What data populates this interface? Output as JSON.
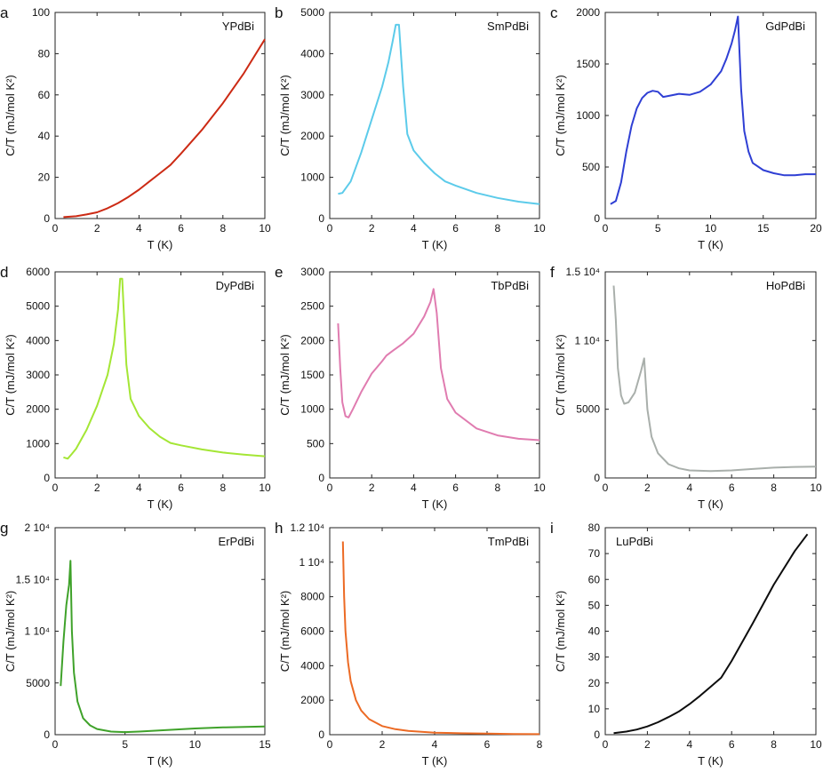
{
  "chart_data": [
    {
      "type": "line",
      "panel": "a",
      "name": "YPdBi",
      "color": "#cc2a14",
      "xlabel": "T (K)",
      "ylabel": "C/T (mJ/mol K²)",
      "xlim": [
        0,
        10
      ],
      "ylim": [
        0,
        100
      ],
      "xticks": [
        {
          "v": 0,
          "label": "0"
        },
        {
          "v": 2,
          "label": "2"
        },
        {
          "v": 4,
          "label": "4"
        },
        {
          "v": 6,
          "label": "6"
        },
        {
          "v": 8,
          "label": "8"
        },
        {
          "v": 10,
          "label": "10"
        }
      ],
      "yticks": [
        {
          "v": 0,
          "label": "0"
        },
        {
          "v": 20,
          "label": "20"
        },
        {
          "v": 40,
          "label": "40"
        },
        {
          "v": 60,
          "label": "60"
        },
        {
          "v": 80,
          "label": "80"
        },
        {
          "v": 100,
          "label": "100"
        }
      ],
      "x": [
        0.4,
        1,
        1.5,
        2,
        2.5,
        3,
        3.5,
        4,
        4.5,
        5,
        5.5,
        6,
        7,
        8,
        9,
        10
      ],
      "y": [
        0.7,
        1.1,
        2,
        3,
        5,
        7.5,
        10.5,
        14,
        18,
        22,
        26,
        31.5,
        43,
        56,
        70.5,
        87
      ]
    },
    {
      "type": "line",
      "panel": "b",
      "name": "SmPdBi",
      "color": "#5ccbea",
      "xlabel": "T (K)",
      "ylabel": "C/T (mJ/mol K²)",
      "xlim": [
        0,
        10
      ],
      "ylim": [
        0,
        5000
      ],
      "xticks": [
        {
          "v": 0,
          "label": "0"
        },
        {
          "v": 2,
          "label": "2"
        },
        {
          "v": 4,
          "label": "4"
        },
        {
          "v": 6,
          "label": "6"
        },
        {
          "v": 8,
          "label": "8"
        },
        {
          "v": 10,
          "label": "10"
        }
      ],
      "yticks": [
        {
          "v": 0,
          "label": "0"
        },
        {
          "v": 1000,
          "label": "1000"
        },
        {
          "v": 2000,
          "label": "2000"
        },
        {
          "v": 3000,
          "label": "3000"
        },
        {
          "v": 4000,
          "label": "4000"
        },
        {
          "v": 5000,
          "label": "5000"
        }
      ],
      "x": [
        0.4,
        0.6,
        1,
        1.5,
        2,
        2.5,
        2.8,
        3,
        3.15,
        3.3,
        3.5,
        3.7,
        4,
        4.5,
        5,
        5.5,
        6,
        7,
        8,
        9,
        10
      ],
      "y": [
        600,
        620,
        900,
        1600,
        2400,
        3200,
        3800,
        4300,
        4700,
        4700,
        3200,
        2050,
        1650,
        1350,
        1100,
        900,
        800,
        620,
        500,
        410,
        350
      ]
    },
    {
      "type": "line",
      "panel": "c",
      "name": "GdPdBi",
      "color": "#2f3fd4",
      "xlabel": "T (K)",
      "ylabel": "C/T (mJ/mol K²)",
      "xlim": [
        0,
        20
      ],
      "ylim": [
        0,
        2000
      ],
      "xticks": [
        {
          "v": 0,
          "label": "0"
        },
        {
          "v": 5,
          "label": "5"
        },
        {
          "v": 10,
          "label": "10"
        },
        {
          "v": 15,
          "label": "15"
        },
        {
          "v": 20,
          "label": "20"
        }
      ],
      "yticks": [
        {
          "v": 0,
          "label": "0"
        },
        {
          "v": 500,
          "label": "500"
        },
        {
          "v": 1000,
          "label": "1000"
        },
        {
          "v": 1500,
          "label": "1500"
        },
        {
          "v": 2000,
          "label": "2000"
        }
      ],
      "x": [
        0.5,
        1,
        1.5,
        2,
        2.5,
        3,
        3.5,
        4,
        4.5,
        5,
        5.5,
        6,
        7,
        8,
        9,
        10,
        11,
        11.5,
        12,
        12.3,
        12.6,
        12.9,
        13.2,
        13.6,
        14,
        15,
        16,
        17,
        18,
        19,
        20
      ],
      "y": [
        140,
        170,
        350,
        650,
        900,
        1070,
        1170,
        1220,
        1240,
        1230,
        1180,
        1190,
        1210,
        1200,
        1230,
        1300,
        1430,
        1550,
        1700,
        1820,
        1960,
        1250,
        850,
        650,
        540,
        470,
        440,
        420,
        420,
        430,
        430
      ]
    },
    {
      "type": "line",
      "panel": "d",
      "name": "DyPdBi",
      "color": "#a4e635",
      "xlabel": "T (K)",
      "ylabel": "C/T (mJ/mol K²)",
      "xlim": [
        0,
        10
      ],
      "ylim": [
        0,
        6000
      ],
      "xticks": [
        {
          "v": 0,
          "label": "0"
        },
        {
          "v": 2,
          "label": "2"
        },
        {
          "v": 4,
          "label": "4"
        },
        {
          "v": 6,
          "label": "6"
        },
        {
          "v": 8,
          "label": "8"
        },
        {
          "v": 10,
          "label": "10"
        }
      ],
      "yticks": [
        {
          "v": 0,
          "label": "0"
        },
        {
          "v": 1000,
          "label": "1000"
        },
        {
          "v": 2000,
          "label": "2000"
        },
        {
          "v": 3000,
          "label": "3000"
        },
        {
          "v": 4000,
          "label": "4000"
        },
        {
          "v": 5000,
          "label": "5000"
        },
        {
          "v": 6000,
          "label": "6000"
        }
      ],
      "x": [
        0.4,
        0.6,
        0.8,
        1,
        1.5,
        2,
        2.5,
        2.8,
        3,
        3.1,
        3.2,
        3.4,
        3.6,
        4,
        4.5,
        5,
        5.5,
        6,
        7,
        8,
        9,
        10
      ],
      "y": [
        600,
        560,
        700,
        850,
        1400,
        2100,
        3000,
        3900,
        4900,
        5800,
        5800,
        3300,
        2300,
        1800,
        1450,
        1200,
        1020,
        950,
        830,
        740,
        680,
        630
      ]
    },
    {
      "type": "line",
      "panel": "e",
      "name": "TbPdBi",
      "color": "#e07cb0",
      "xlabel": "T (K)",
      "ylabel": "C/T (mJ/mol K²)",
      "xlim": [
        0,
        10
      ],
      "ylim": [
        0,
        3000
      ],
      "xticks": [
        {
          "v": 0,
          "label": "0"
        },
        {
          "v": 2,
          "label": "2"
        },
        {
          "v": 4,
          "label": "4"
        },
        {
          "v": 6,
          "label": "6"
        },
        {
          "v": 8,
          "label": "8"
        },
        {
          "v": 10,
          "label": "10"
        }
      ],
      "yticks": [
        {
          "v": 0,
          "label": "0"
        },
        {
          "v": 500,
          "label": "500"
        },
        {
          "v": 1000,
          "label": "1000"
        },
        {
          "v": 1500,
          "label": "1500"
        },
        {
          "v": 2000,
          "label": "2000"
        },
        {
          "v": 2500,
          "label": "2500"
        },
        {
          "v": 3000,
          "label": "3000"
        }
      ],
      "x": [
        0.4,
        0.5,
        0.6,
        0.75,
        0.9,
        1.1,
        1.5,
        2,
        2.5,
        2.7,
        3,
        3.5,
        4,
        4.5,
        4.8,
        4.95,
        5.1,
        5.3,
        5.6,
        6,
        7,
        8,
        9,
        10
      ],
      "y": [
        2250,
        1600,
        1100,
        900,
        880,
        1000,
        1250,
        1520,
        1700,
        1780,
        1850,
        1960,
        2100,
        2350,
        2560,
        2750,
        2400,
        1600,
        1150,
        950,
        720,
        620,
        570,
        550
      ]
    },
    {
      "type": "line",
      "panel": "f",
      "name": "HoPdBi",
      "color": "#a9afab",
      "xlabel": "T (K)",
      "ylabel": "C/T (mJ/mol K²)",
      "xlim": [
        0,
        10
      ],
      "ylim": [
        0,
        15000
      ],
      "xticks": [
        {
          "v": 0,
          "label": "0"
        },
        {
          "v": 2,
          "label": "2"
        },
        {
          "v": 4,
          "label": "4"
        },
        {
          "v": 6,
          "label": "6"
        },
        {
          "v": 8,
          "label": "8"
        },
        {
          "v": 10,
          "label": "10"
        }
      ],
      "yticks": [
        {
          "v": 0,
          "label": "0"
        },
        {
          "v": 5000,
          "label": "5000"
        },
        {
          "v": 10000,
          "label": "1 10⁴"
        },
        {
          "v": 15000,
          "label": "1.5 10⁴"
        }
      ],
      "x": [
        0.4,
        0.5,
        0.6,
        0.75,
        0.9,
        1.1,
        1.4,
        1.7,
        1.85,
        2,
        2.2,
        2.5,
        3,
        3.5,
        4,
        5,
        6,
        7,
        8,
        9,
        10
      ],
      "y": [
        14000,
        11500,
        8000,
        6000,
        5400,
        5500,
        6200,
        7800,
        8700,
        5000,
        3000,
        1800,
        1000,
        700,
        550,
        500,
        550,
        650,
        750,
        800,
        830
      ]
    },
    {
      "type": "line",
      "panel": "g",
      "name": "ErPdBi",
      "color": "#3fa22a",
      "xlabel": "T (K)",
      "ylabel": "C/T (mJ/mol K²)",
      "xlim": [
        0,
        15
      ],
      "ylim": [
        0,
        20000
      ],
      "xticks": [
        {
          "v": 0,
          "label": "0"
        },
        {
          "v": 5,
          "label": "5"
        },
        {
          "v": 10,
          "label": "10"
        },
        {
          "v": 15,
          "label": "15"
        }
      ],
      "yticks": [
        {
          "v": 0,
          "label": "0"
        },
        {
          "v": 5000,
          "label": "5000"
        },
        {
          "v": 10000,
          "label": "1 10⁴"
        },
        {
          "v": 15000,
          "label": "1.5 10⁴"
        },
        {
          "v": 20000,
          "label": "2 10⁴"
        }
      ],
      "x": [
        0.4,
        0.6,
        0.8,
        1,
        1.1,
        1.2,
        1.35,
        1.6,
        2,
        2.5,
        3,
        4,
        5,
        6,
        8,
        10,
        12,
        15
      ],
      "y": [
        4700,
        9000,
        12500,
        14500,
        16800,
        10000,
        6000,
        3200,
        1600,
        900,
        550,
        300,
        250,
        300,
        450,
        600,
        700,
        800
      ]
    },
    {
      "type": "line",
      "panel": "h",
      "name": "TmPdBi",
      "color": "#ec6a24",
      "xlabel": "T (K)",
      "ylabel": "C/T (mJ/mol K²)",
      "xlim": [
        0,
        8
      ],
      "ylim": [
        0,
        12000
      ],
      "xticks": [
        {
          "v": 0,
          "label": "0"
        },
        {
          "v": 2,
          "label": "2"
        },
        {
          "v": 4,
          "label": "4"
        },
        {
          "v": 6,
          "label": "6"
        },
        {
          "v": 8,
          "label": "8"
        }
      ],
      "yticks": [
        {
          "v": 0,
          "label": "0"
        },
        {
          "v": 2000,
          "label": "2000"
        },
        {
          "v": 4000,
          "label": "4000"
        },
        {
          "v": 6000,
          "label": "6000"
        },
        {
          "v": 8000,
          "label": "8000"
        },
        {
          "v": 10000,
          "label": "1 10⁴"
        },
        {
          "v": 12000,
          "label": "1.2 10⁴"
        }
      ],
      "x": [
        0.5,
        0.55,
        0.6,
        0.7,
        0.8,
        1,
        1.2,
        1.5,
        2,
        2.5,
        3,
        4,
        5,
        6,
        7,
        8
      ],
      "y": [
        11200,
        8000,
        6000,
        4200,
        3100,
        2000,
        1400,
        900,
        500,
        320,
        220,
        120,
        80,
        60,
        40,
        30
      ]
    },
    {
      "type": "line",
      "panel": "i",
      "name": "LuPdBi",
      "color": "#0d0d0d",
      "xlabel": "T (K)",
      "ylabel": "C/T (mJ/mol K²)",
      "xlim": [
        0,
        10
      ],
      "ylim": [
        0,
        80
      ],
      "xticks": [
        {
          "v": 0,
          "label": "0"
        },
        {
          "v": 2,
          "label": "2"
        },
        {
          "v": 4,
          "label": "4"
        },
        {
          "v": 6,
          "label": "6"
        },
        {
          "v": 8,
          "label": "8"
        },
        {
          "v": 10,
          "label": "10"
        }
      ],
      "yticks": [
        {
          "v": 0,
          "label": "0"
        },
        {
          "v": 10,
          "label": "10"
        },
        {
          "v": 20,
          "label": "20"
        },
        {
          "v": 30,
          "label": "30"
        },
        {
          "v": 40,
          "label": "40"
        },
        {
          "v": 50,
          "label": "50"
        },
        {
          "v": 60,
          "label": "60"
        },
        {
          "v": 70,
          "label": "70"
        },
        {
          "v": 80,
          "label": "80"
        }
      ],
      "x": [
        0.4,
        1,
        1.5,
        2,
        2.5,
        3,
        3.5,
        4,
        4.5,
        5,
        5.5,
        6,
        7,
        8,
        9,
        9.6
      ],
      "y": [
        0.6,
        1.2,
        2,
        3.2,
        4.8,
        6.8,
        9,
        11.8,
        15,
        18.5,
        22,
        28.5,
        43,
        58,
        71,
        77.5
      ]
    }
  ]
}
